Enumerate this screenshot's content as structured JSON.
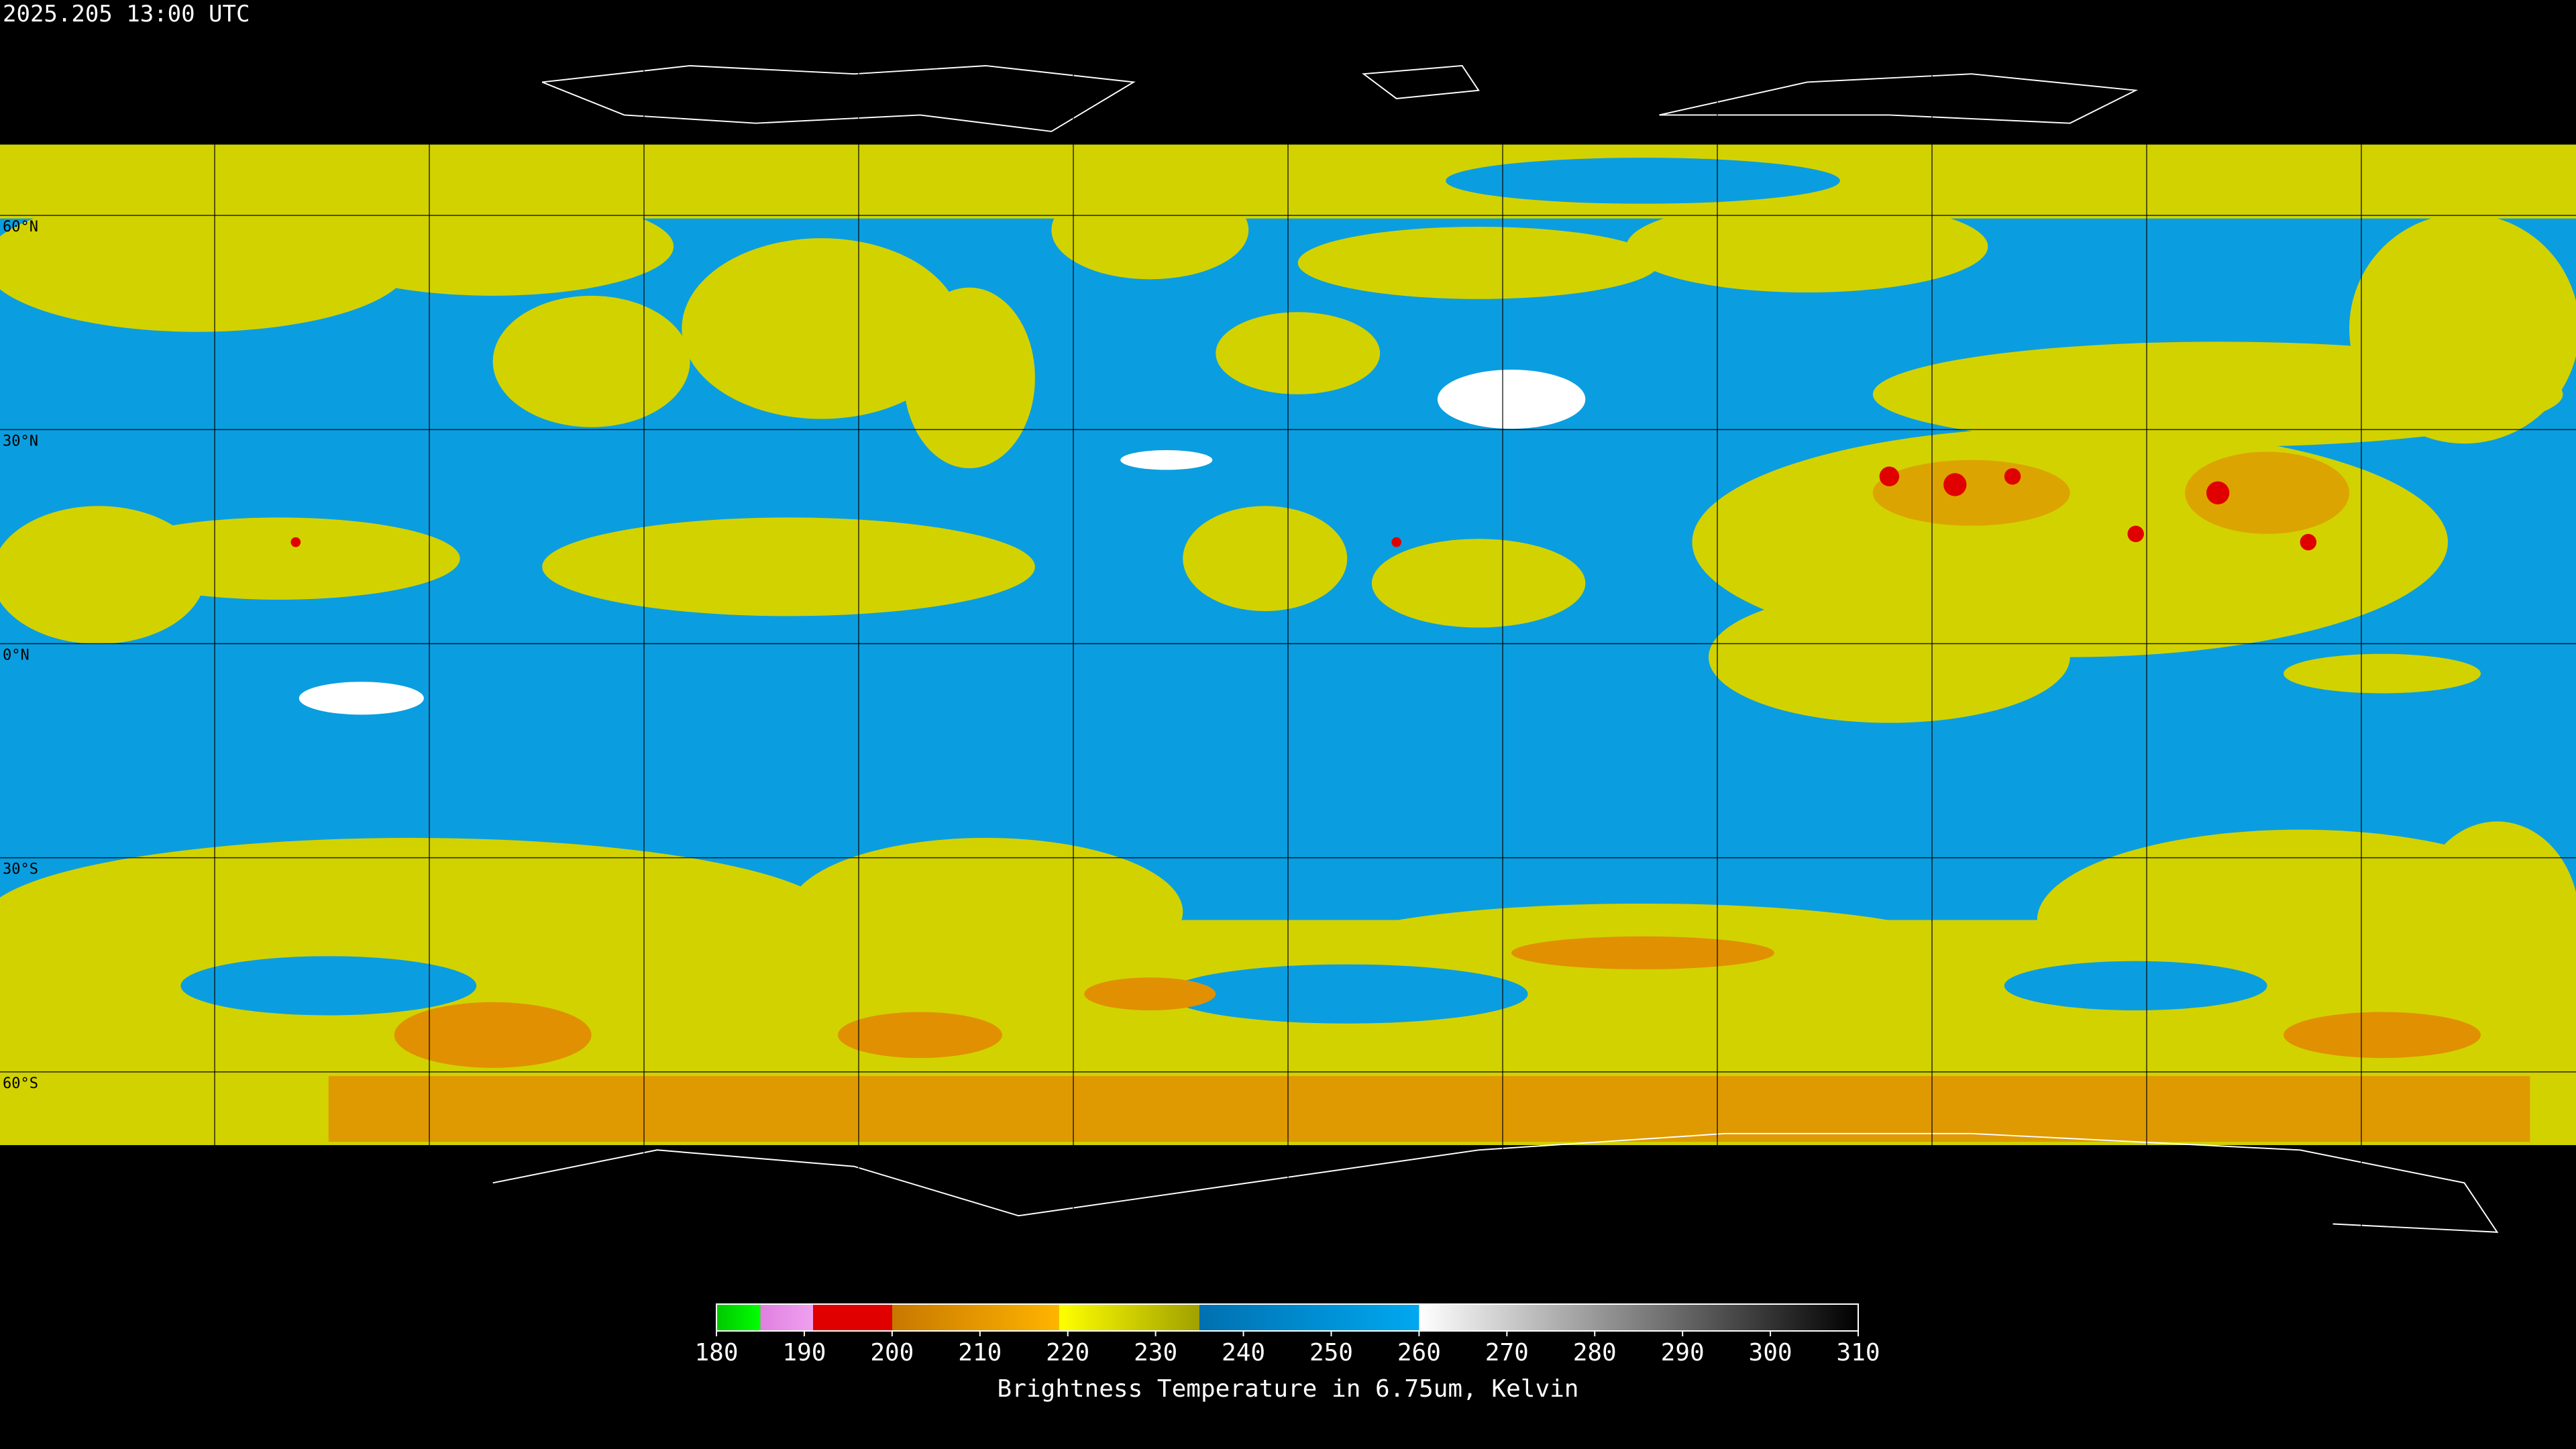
{
  "header": {
    "timestamp": "2025.205 13:00 UTC"
  },
  "map": {
    "latitudes": [
      {
        "value": 60,
        "label": "60°N"
      },
      {
        "value": 30,
        "label": "30°N"
      },
      {
        "value": 0,
        "label": "0°N"
      },
      {
        "value": -30,
        "label": "30°S"
      },
      {
        "value": -60,
        "label": "60°S"
      }
    ]
  },
  "colorbar": {
    "label": "Brightness Temperature in 6.75um, Kelvin",
    "range": [
      180,
      310
    ],
    "ticks": [
      180,
      190,
      200,
      210,
      220,
      230,
      240,
      250,
      260,
      270,
      280,
      290,
      300,
      310
    ],
    "segments": [
      {
        "from": 180,
        "to": 185,
        "colors": [
          "#00c800",
          "#00ff00"
        ]
      },
      {
        "from": 185,
        "to": 191,
        "colors": [
          "#e080e0",
          "#f0a0f0"
        ]
      },
      {
        "from": 191,
        "to": 200,
        "colors": [
          "#e00000",
          "#e00000"
        ]
      },
      {
        "from": 200,
        "to": 219,
        "colors": [
          "#c87800",
          "#ffb400"
        ]
      },
      {
        "from": 219,
        "to": 235,
        "colors": [
          "#ffff00",
          "#a0a000"
        ]
      },
      {
        "from": 235,
        "to": 260,
        "colors": [
          "#0070b0",
          "#00a8f0"
        ]
      },
      {
        "from": 260,
        "to": 310,
        "colors": [
          "#ffffff",
          "#000000"
        ]
      }
    ]
  }
}
